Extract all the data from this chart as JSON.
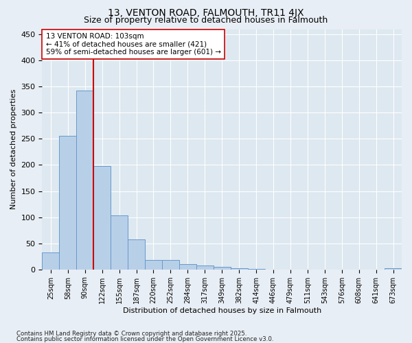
{
  "title1": "13, VENTON ROAD, FALMOUTH, TR11 4JX",
  "title2": "Size of property relative to detached houses in Falmouth",
  "xlabel": "Distribution of detached houses by size in Falmouth",
  "ylabel": "Number of detached properties",
  "categories": [
    "25sqm",
    "58sqm",
    "90sqm",
    "122sqm",
    "155sqm",
    "187sqm",
    "220sqm",
    "252sqm",
    "284sqm",
    "317sqm",
    "349sqm",
    "382sqm",
    "414sqm",
    "446sqm",
    "479sqm",
    "511sqm",
    "543sqm",
    "576sqm",
    "608sqm",
    "641sqm",
    "673sqm"
  ],
  "values": [
    33,
    256,
    342,
    198,
    104,
    57,
    18,
    18,
    10,
    8,
    5,
    2,
    1,
    0,
    0,
    0,
    0,
    0,
    0,
    0,
    2
  ],
  "bar_color": "#b8cfe8",
  "bar_edge_color": "#6699cc",
  "vline_x": 2.5,
  "vline_color": "#cc0000",
  "annotation_line1": "13 VENTON ROAD: 103sqm",
  "annotation_line2": "← 41% of detached houses are smaller (421)",
  "annotation_line3": "59% of semi-detached houses are larger (601) →",
  "annotation_box_color": "#ffffff",
  "annotation_box_edge": "#cc0000",
  "footer1": "Contains HM Land Registry data © Crown copyright and database right 2025.",
  "footer2": "Contains public sector information licensed under the Open Government Licence v3.0.",
  "ylim": [
    0,
    460
  ],
  "yticks": [
    0,
    50,
    100,
    150,
    200,
    250,
    300,
    350,
    400,
    450
  ],
  "bg_color": "#e8eef5",
  "plot_bg_color": "#dde8f0",
  "grid_color": "#ffffff",
  "title_fontsize": 10,
  "subtitle_fontsize": 9,
  "tick_fontsize": 7,
  "label_fontsize": 8
}
